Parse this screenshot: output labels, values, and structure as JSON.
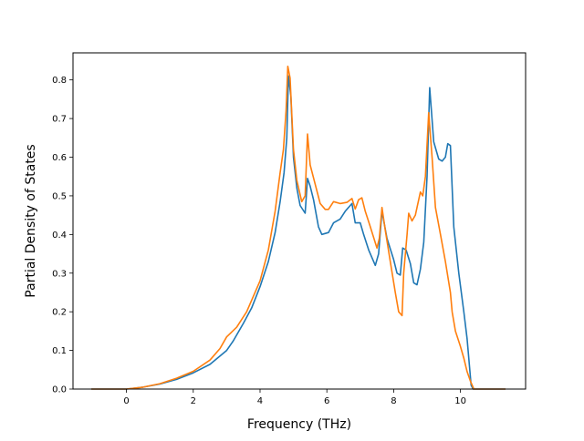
{
  "chart_data": {
    "type": "line",
    "title": "",
    "xlabel": "Frequency (THz)",
    "ylabel": "Partial Density of States",
    "xlim": [
      -1.6,
      11.95
    ],
    "ylim": [
      0.0,
      0.87
    ],
    "xticks": [
      0,
      2,
      4,
      6,
      8,
      10
    ],
    "yticks": [
      0.0,
      0.1,
      0.2,
      0.3,
      0.4,
      0.5,
      0.6,
      0.7,
      0.8
    ],
    "xtick_labels": [
      "0",
      "2",
      "4",
      "6",
      "8",
      "10"
    ],
    "ytick_labels": [
      "0.0",
      "0.1",
      "0.2",
      "0.3",
      "0.4",
      "0.5",
      "0.6",
      "0.7",
      "0.8"
    ],
    "grid": false,
    "legend": null,
    "series": [
      {
        "color": "#1f77b4",
        "points": [
          [
            -1.05,
            0.0
          ],
          [
            0.0,
            0.0
          ],
          [
            0.5,
            0.005
          ],
          [
            1.0,
            0.013
          ],
          [
            1.5,
            0.025
          ],
          [
            2.0,
            0.042
          ],
          [
            2.5,
            0.064
          ],
          [
            3.0,
            0.1
          ],
          [
            3.2,
            0.125
          ],
          [
            3.5,
            0.17
          ],
          [
            3.75,
            0.21
          ],
          [
            4.0,
            0.265
          ],
          [
            4.25,
            0.33
          ],
          [
            4.45,
            0.405
          ],
          [
            4.6,
            0.485
          ],
          [
            4.72,
            0.56
          ],
          [
            4.8,
            0.65
          ],
          [
            4.85,
            0.81
          ],
          [
            4.92,
            0.76
          ],
          [
            5.0,
            0.6
          ],
          [
            5.1,
            0.52
          ],
          [
            5.2,
            0.475
          ],
          [
            5.35,
            0.455
          ],
          [
            5.42,
            0.545
          ],
          [
            5.5,
            0.525
          ],
          [
            5.6,
            0.49
          ],
          [
            5.75,
            0.42
          ],
          [
            5.85,
            0.4
          ],
          [
            6.05,
            0.405
          ],
          [
            6.2,
            0.43
          ],
          [
            6.4,
            0.44
          ],
          [
            6.55,
            0.46
          ],
          [
            6.75,
            0.48
          ],
          [
            6.85,
            0.43
          ],
          [
            7.0,
            0.43
          ],
          [
            7.1,
            0.4
          ],
          [
            7.25,
            0.36
          ],
          [
            7.45,
            0.32
          ],
          [
            7.55,
            0.35
          ],
          [
            7.65,
            0.46
          ],
          [
            7.8,
            0.39
          ],
          [
            8.0,
            0.335
          ],
          [
            8.1,
            0.3
          ],
          [
            8.2,
            0.295
          ],
          [
            8.27,
            0.365
          ],
          [
            8.37,
            0.36
          ],
          [
            8.5,
            0.325
          ],
          [
            8.6,
            0.275
          ],
          [
            8.7,
            0.27
          ],
          [
            8.8,
            0.31
          ],
          [
            8.9,
            0.38
          ],
          [
            9.0,
            0.55
          ],
          [
            9.08,
            0.78
          ],
          [
            9.2,
            0.64
          ],
          [
            9.35,
            0.595
          ],
          [
            9.45,
            0.59
          ],
          [
            9.55,
            0.6
          ],
          [
            9.62,
            0.635
          ],
          [
            9.7,
            0.63
          ],
          [
            9.8,
            0.42
          ],
          [
            9.95,
            0.3
          ],
          [
            10.1,
            0.2
          ],
          [
            10.2,
            0.13
          ],
          [
            10.32,
            0.01
          ],
          [
            10.38,
            0.0
          ],
          [
            11.35,
            0.0
          ]
        ]
      },
      {
        "color": "#ff7f0e",
        "points": [
          [
            -1.05,
            0.0
          ],
          [
            0.0,
            0.0
          ],
          [
            0.5,
            0.005
          ],
          [
            1.0,
            0.014
          ],
          [
            1.5,
            0.028
          ],
          [
            2.0,
            0.046
          ],
          [
            2.5,
            0.075
          ],
          [
            2.8,
            0.105
          ],
          [
            3.0,
            0.135
          ],
          [
            3.3,
            0.16
          ],
          [
            3.6,
            0.2
          ],
          [
            4.0,
            0.28
          ],
          [
            4.25,
            0.36
          ],
          [
            4.45,
            0.46
          ],
          [
            4.6,
            0.56
          ],
          [
            4.7,
            0.62
          ],
          [
            4.78,
            0.72
          ],
          [
            4.83,
            0.835
          ],
          [
            4.9,
            0.805
          ],
          [
            5.0,
            0.62
          ],
          [
            5.1,
            0.54
          ],
          [
            5.25,
            0.485
          ],
          [
            5.35,
            0.5
          ],
          [
            5.42,
            0.66
          ],
          [
            5.5,
            0.58
          ],
          [
            5.65,
            0.53
          ],
          [
            5.8,
            0.48
          ],
          [
            5.95,
            0.465
          ],
          [
            6.05,
            0.465
          ],
          [
            6.2,
            0.485
          ],
          [
            6.4,
            0.48
          ],
          [
            6.6,
            0.483
          ],
          [
            6.75,
            0.493
          ],
          [
            6.85,
            0.466
          ],
          [
            6.95,
            0.49
          ],
          [
            7.05,
            0.495
          ],
          [
            7.15,
            0.46
          ],
          [
            7.3,
            0.42
          ],
          [
            7.5,
            0.365
          ],
          [
            7.57,
            0.39
          ],
          [
            7.65,
            0.47
          ],
          [
            7.75,
            0.41
          ],
          [
            7.9,
            0.33
          ],
          [
            8.05,
            0.25
          ],
          [
            8.15,
            0.2
          ],
          [
            8.25,
            0.19
          ],
          [
            8.3,
            0.3
          ],
          [
            8.4,
            0.4
          ],
          [
            8.45,
            0.455
          ],
          [
            8.55,
            0.435
          ],
          [
            8.65,
            0.45
          ],
          [
            8.8,
            0.51
          ],
          [
            8.87,
            0.5
          ],
          [
            8.95,
            0.55
          ],
          [
            9.05,
            0.715
          ],
          [
            9.15,
            0.6
          ],
          [
            9.25,
            0.47
          ],
          [
            9.4,
            0.4
          ],
          [
            9.55,
            0.33
          ],
          [
            9.7,
            0.25
          ],
          [
            9.75,
            0.2
          ],
          [
            9.85,
            0.15
          ],
          [
            10.0,
            0.11
          ],
          [
            10.1,
            0.08
          ],
          [
            10.2,
            0.045
          ],
          [
            10.3,
            0.02
          ],
          [
            10.4,
            0.0
          ],
          [
            11.35,
            0.0
          ]
        ]
      }
    ]
  }
}
